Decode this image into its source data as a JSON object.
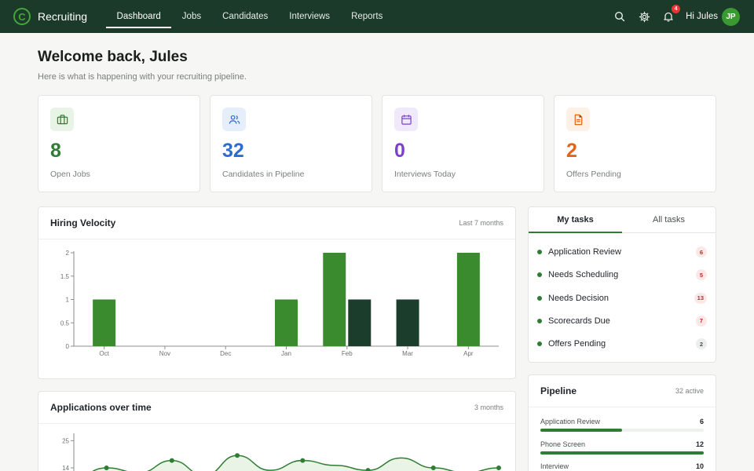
{
  "brand": {
    "name": "Recruiting",
    "logo_letter": "C"
  },
  "nav": [
    {
      "label": "Dashboard",
      "active": true
    },
    {
      "label": "Jobs",
      "active": false
    },
    {
      "label": "Candidates",
      "active": false
    },
    {
      "label": "Interviews",
      "active": false
    },
    {
      "label": "Reports",
      "active": false
    }
  ],
  "topbar": {
    "notifications": "4",
    "greeting": "Hi Jules",
    "avatar_initials": "JP"
  },
  "header": {
    "title": "Welcome back, Jules",
    "subtitle": "Here is what is happening with your recruiting pipeline."
  },
  "stats": [
    {
      "value": "8",
      "label": "Open Jobs",
      "color": "#2e7d32",
      "icon_bg": "#e8f4e6",
      "icon": "briefcase-icon"
    },
    {
      "value": "32",
      "label": "Candidates in Pipeline",
      "color": "#2d6bd1",
      "icon_bg": "#e6eefb",
      "icon": "users-icon"
    },
    {
      "value": "0",
      "label": "Interviews Today",
      "color": "#7b3fd1",
      "icon_bg": "#f0e9fb",
      "icon": "calendar-icon"
    },
    {
      "value": "2",
      "label": "Offers Pending",
      "color": "#e0641c",
      "icon_bg": "#fdf0e4",
      "icon": "document-icon"
    }
  ],
  "velocity": {
    "title": "Hiring Velocity",
    "meta": "Last 7 months",
    "chart_data": {
      "type": "bar",
      "categories": [
        "Oct",
        "Nov",
        "Dec",
        "Jan",
        "Feb",
        "Mar",
        "Apr"
      ],
      "series": [
        {
          "values": [
            1,
            0,
            0,
            1,
            2,
            0,
            2
          ],
          "color": "#3a8a2e"
        },
        {
          "values": [
            0,
            0,
            0,
            0,
            1,
            1,
            0
          ],
          "color": "#1a3d2c"
        }
      ],
      "yticks": [
        "0",
        "0.5",
        "1",
        "1.5",
        "2"
      ],
      "ylim": [
        0,
        2
      ]
    }
  },
  "applications": {
    "title": "Applications over time",
    "meta": "3 months",
    "chart_data": {
      "type": "line",
      "y": [
        10,
        14,
        12,
        17,
        11,
        19,
        13,
        17,
        15,
        13,
        18,
        14,
        12,
        14
      ],
      "yticks": [
        "14",
        "25"
      ],
      "ylim": [
        0,
        28
      ]
    }
  },
  "tasks": {
    "tabs": [
      {
        "label": "My tasks",
        "active": true
      },
      {
        "label": "All tasks",
        "active": false
      }
    ],
    "items": [
      {
        "label": "Application Review",
        "count": "6",
        "bg": "#fde8e8",
        "fg": "#c62828"
      },
      {
        "label": "Needs Scheduling",
        "count": "5",
        "bg": "#fde8e8",
        "fg": "#c62828"
      },
      {
        "label": "Needs Decision",
        "count": "13",
        "bg": "#fde8e8",
        "fg": "#c62828"
      },
      {
        "label": "Scorecards Due",
        "count": "7",
        "bg": "#fde8e8",
        "fg": "#c62828"
      },
      {
        "label": "Offers Pending",
        "count": "2",
        "bg": "#eceeed",
        "fg": "#4a4f4c"
      }
    ]
  },
  "pipeline": {
    "title": "Pipeline",
    "meta": "32 active",
    "stages": [
      {
        "label": "Application Review",
        "value": "6",
        "fraction": 0.5
      },
      {
        "label": "Phone Screen",
        "value": "12",
        "fraction": 1.0
      },
      {
        "label": "Interview",
        "value": "10",
        "fraction": 0.83
      }
    ]
  }
}
